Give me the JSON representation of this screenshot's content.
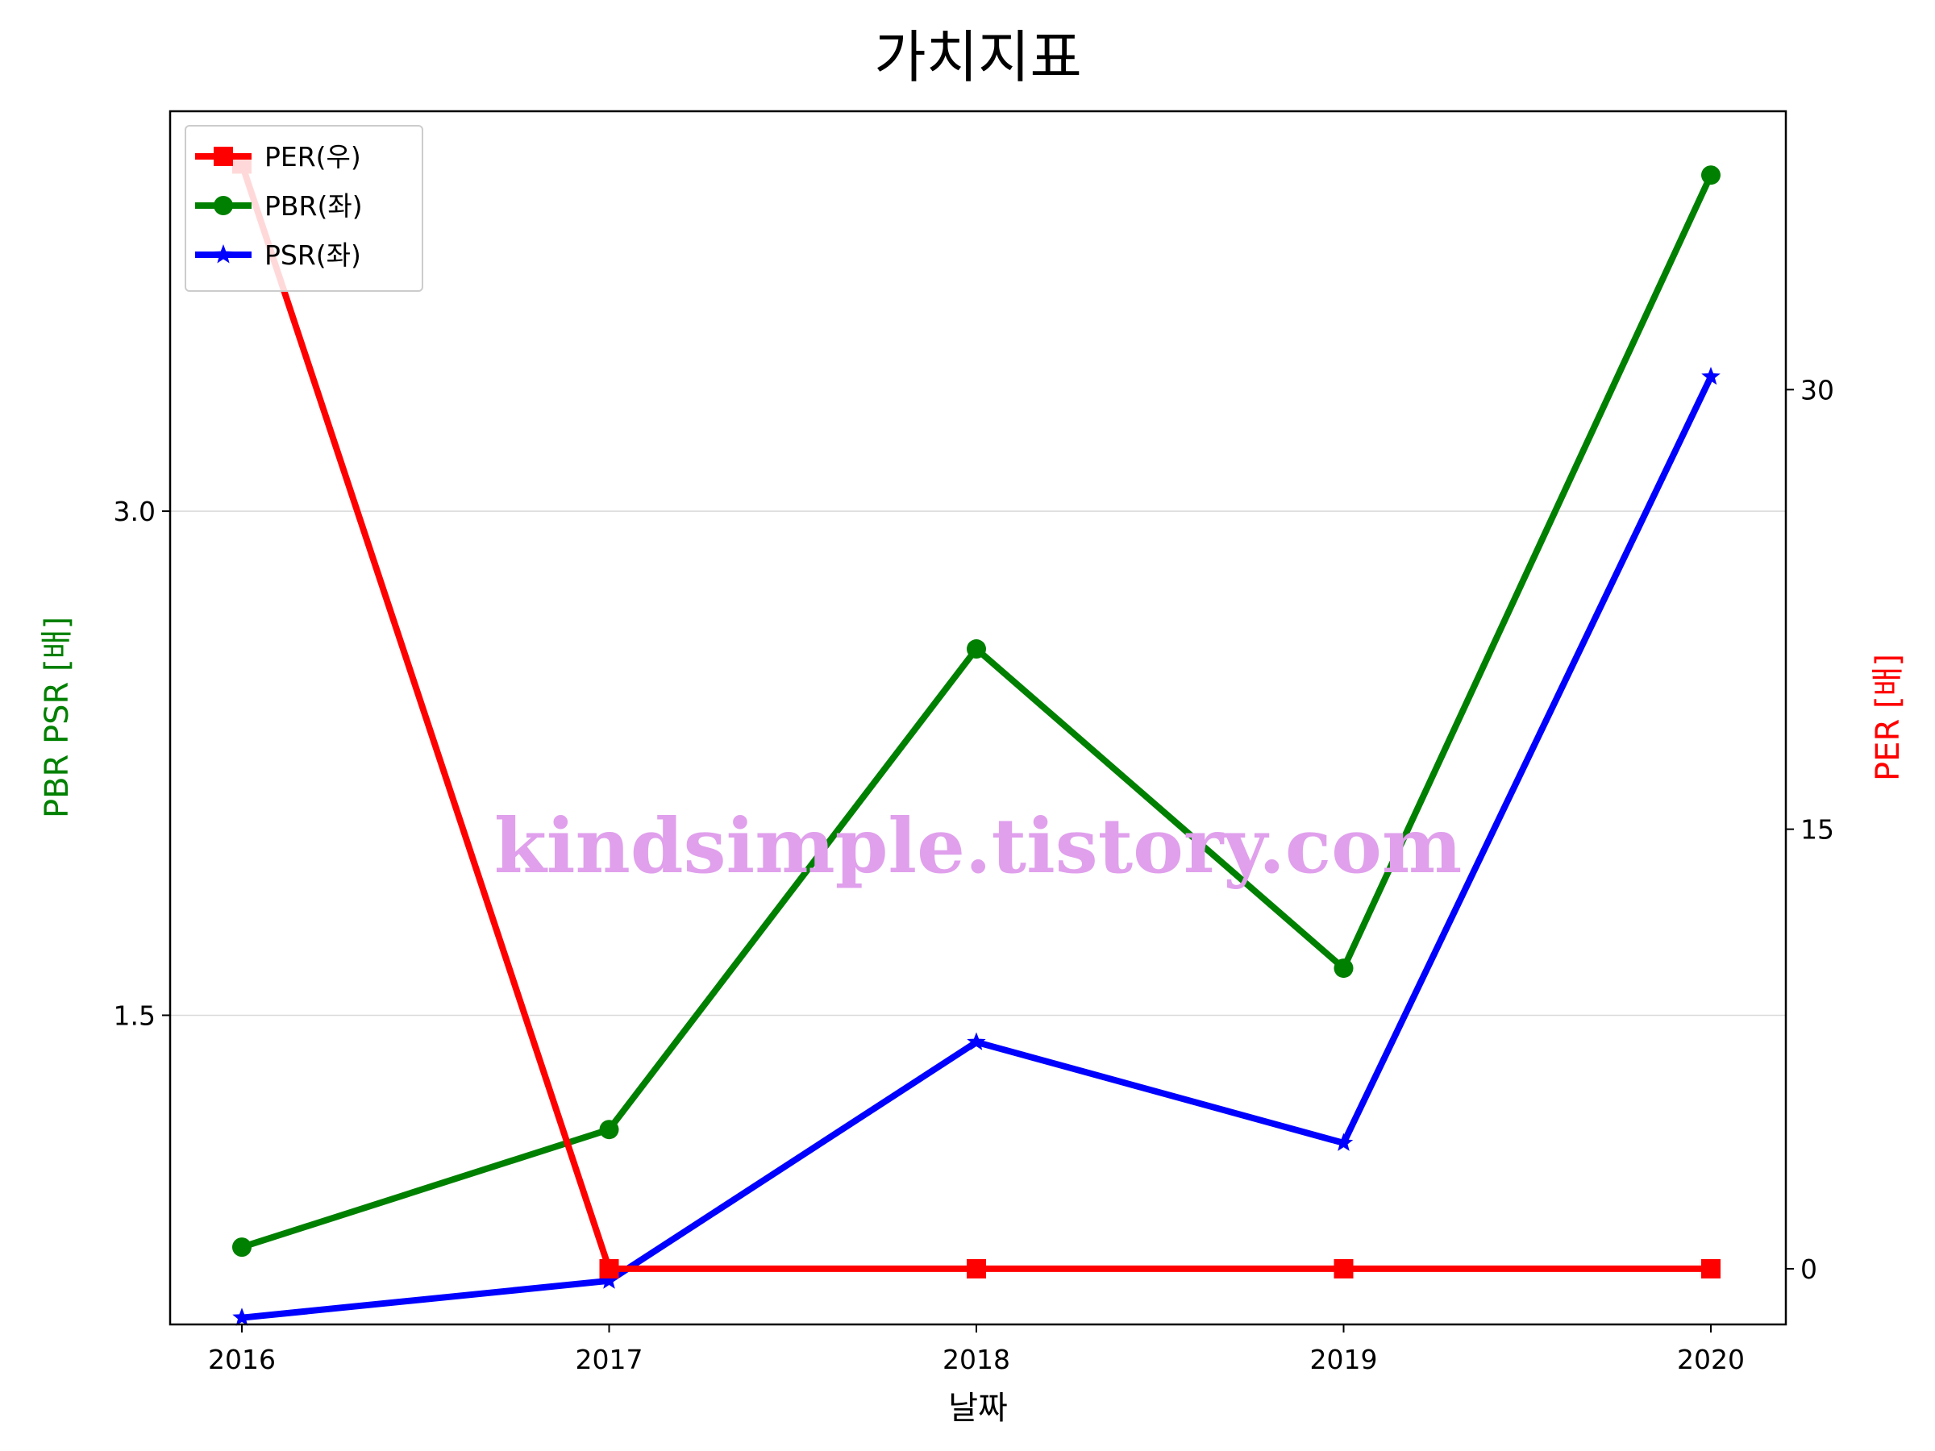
{
  "chart_data": {
    "type": "line",
    "title": "가치지표",
    "xlabel": "날짜",
    "ylabel_left": "PBR PSR [배]",
    "ylabel_right": "PER [배]",
    "categories": [
      "2016",
      "2017",
      "2018",
      "2019",
      "2020"
    ],
    "left_axis": {
      "ylim": [
        0.58,
        4.19
      ],
      "ticks": [
        1.5,
        3.0
      ],
      "tick_labels": [
        "1.5",
        "3.0"
      ]
    },
    "right_axis": {
      "ylim": [
        -1.9,
        39.5
      ],
      "ticks": [
        0,
        15,
        30
      ],
      "tick_labels": [
        "0",
        "15",
        "30"
      ]
    },
    "series": [
      {
        "name": "PER(우)",
        "axis": "right",
        "color": "#ff0000",
        "marker": "square",
        "values": [
          37.7,
          0,
          0,
          0,
          0
        ]
      },
      {
        "name": "PBR(좌)",
        "axis": "left",
        "color": "#008000",
        "marker": "circle",
        "values": [
          0.81,
          1.16,
          2.59,
          1.64,
          4.0
        ]
      },
      {
        "name": "PSR(좌)",
        "axis": "left",
        "color": "#0000ff",
        "marker": "star",
        "values": [
          0.6,
          0.71,
          1.42,
          1.12,
          3.4
        ]
      }
    ],
    "grid": "horizontal (left axis)",
    "legend_position": "upper-left"
  },
  "watermark": "kindsimple.tistory.com"
}
